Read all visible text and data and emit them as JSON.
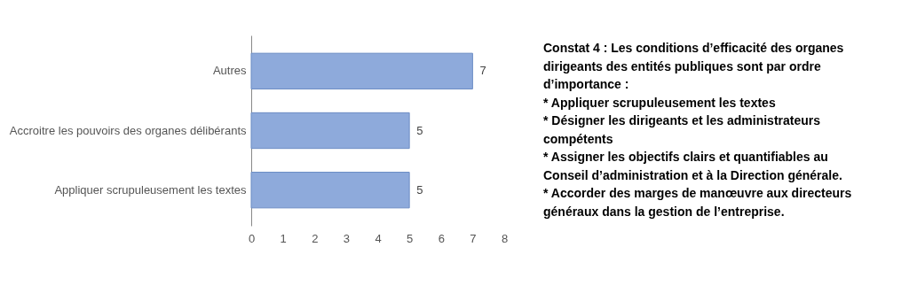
{
  "chart_data": {
    "type": "bar",
    "orientation": "horizontal",
    "categories": [
      "Autres",
      "Accroitre les pouvoirs des organes délibérants",
      "Appliquer scrupuleusement les textes"
    ],
    "values": [
      7,
      5,
      5
    ],
    "color": "#8eaadb",
    "data_labels": true,
    "xlim": [
      0,
      8
    ],
    "xticks": [
      0,
      1,
      2,
      3,
      4,
      5,
      6,
      7,
      8
    ],
    "grid": false,
    "annotations": [
      "Constat 4 : Les conditions d’efficacité des organes dirigeants des entités publiques sont par ordre d’importance :",
      "* Appliquer scrupuleusement les textes",
      "* Désigner les dirigeants et les administrateurs compétents",
      "* Assigner les objectifs clairs et quantifiables au Conseil d’administration et à la Direction générale.",
      "* Accorder des marges de manœuvre aux directeurs généraux dans la gestion de l’entreprise."
    ]
  }
}
